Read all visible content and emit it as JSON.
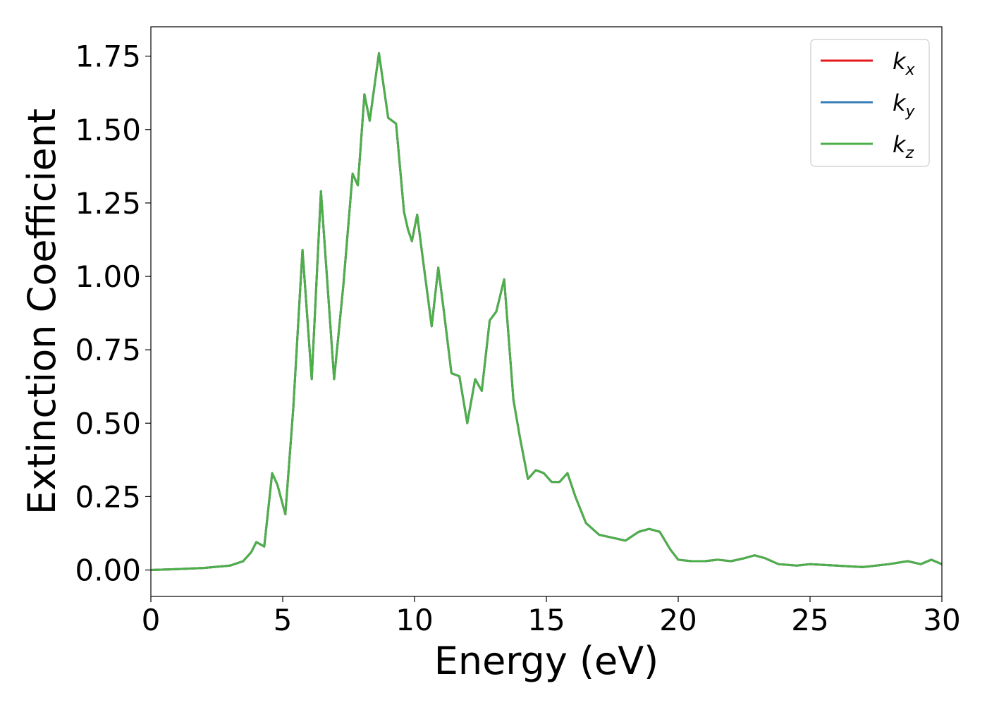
{
  "chart_data": {
    "type": "line",
    "title": "",
    "xlabel": "Energy (eV)",
    "ylabel": "Extinction Coefficient",
    "xlim": [
      0,
      30
    ],
    "ylim": [
      -0.09,
      1.85
    ],
    "xticks": [
      0,
      5,
      10,
      15,
      20,
      25,
      30
    ],
    "xtick_labels": [
      "0",
      "5",
      "10",
      "15",
      "20",
      "25",
      "30"
    ],
    "yticks": [
      0.0,
      0.25,
      0.5,
      0.75,
      1.0,
      1.25,
      1.5,
      1.75
    ],
    "ytick_labels": [
      "0.00",
      "0.25",
      "0.50",
      "0.75",
      "1.00",
      "1.25",
      "1.50",
      "1.75"
    ],
    "grid": false,
    "legend_position": "top-right",
    "legend": [
      {
        "base": "k",
        "sub": "x",
        "color": "#e41a1c"
      },
      {
        "base": "k",
        "sub": "y",
        "color": "#377eb8"
      },
      {
        "base": "k",
        "sub": "z",
        "color": "#4daf4a"
      }
    ],
    "x": [
      0,
      1,
      2,
      3,
      3.5,
      3.8,
      4.0,
      4.3,
      4.6,
      4.8,
      5.1,
      5.4,
      5.75,
      6.1,
      6.45,
      6.95,
      7.3,
      7.65,
      7.85,
      8.1,
      8.3,
      8.65,
      9.0,
      9.3,
      9.6,
      9.75,
      9.9,
      10.1,
      10.3,
      10.65,
      10.9,
      11.1,
      11.4,
      11.7,
      12.0,
      12.3,
      12.55,
      12.85,
      13.1,
      13.4,
      13.75,
      14.0,
      14.3,
      14.6,
      14.9,
      15.2,
      15.5,
      15.8,
      16.1,
      16.5,
      17.0,
      17.5,
      18.0,
      18.5,
      18.9,
      19.3,
      19.7,
      20.0,
      20.5,
      21.0,
      21.5,
      22.0,
      22.5,
      22.9,
      23.3,
      23.8,
      24.5,
      25.0,
      26.0,
      27.0,
      28.0,
      28.7,
      29.2,
      29.6,
      30.0
    ],
    "series": [
      {
        "name": "k_x",
        "color": "#e41a1c",
        "y": [
          0.0,
          0.003,
          0.007,
          0.015,
          0.03,
          0.06,
          0.095,
          0.08,
          0.33,
          0.29,
          0.19,
          0.55,
          1.09,
          0.65,
          1.29,
          0.65,
          0.97,
          1.35,
          1.31,
          1.62,
          1.53,
          1.76,
          1.54,
          1.52,
          1.22,
          1.16,
          1.12,
          1.21,
          1.07,
          0.83,
          1.03,
          0.89,
          0.67,
          0.66,
          0.5,
          0.65,
          0.61,
          0.85,
          0.88,
          0.99,
          0.58,
          0.45,
          0.31,
          0.34,
          0.33,
          0.3,
          0.3,
          0.33,
          0.25,
          0.16,
          0.12,
          0.11,
          0.1,
          0.13,
          0.14,
          0.13,
          0.07,
          0.035,
          0.03,
          0.03,
          0.035,
          0.03,
          0.04,
          0.05,
          0.04,
          0.02,
          0.015,
          0.02,
          0.015,
          0.01,
          0.02,
          0.03,
          0.02,
          0.035,
          0.02
        ]
      },
      {
        "name": "k_y",
        "color": "#377eb8",
        "y": [
          0.0,
          0.003,
          0.007,
          0.015,
          0.03,
          0.06,
          0.095,
          0.08,
          0.33,
          0.29,
          0.19,
          0.55,
          1.09,
          0.65,
          1.29,
          0.65,
          0.97,
          1.35,
          1.31,
          1.62,
          1.53,
          1.76,
          1.54,
          1.52,
          1.22,
          1.16,
          1.12,
          1.21,
          1.07,
          0.83,
          1.03,
          0.89,
          0.67,
          0.66,
          0.5,
          0.65,
          0.61,
          0.85,
          0.88,
          0.99,
          0.58,
          0.45,
          0.31,
          0.34,
          0.33,
          0.3,
          0.3,
          0.33,
          0.25,
          0.16,
          0.12,
          0.11,
          0.1,
          0.13,
          0.14,
          0.13,
          0.07,
          0.035,
          0.03,
          0.03,
          0.035,
          0.03,
          0.04,
          0.05,
          0.04,
          0.02,
          0.015,
          0.02,
          0.015,
          0.01,
          0.02,
          0.03,
          0.02,
          0.035,
          0.02
        ]
      },
      {
        "name": "k_z",
        "color": "#4daf4a",
        "y": [
          0.0,
          0.003,
          0.007,
          0.015,
          0.03,
          0.06,
          0.095,
          0.08,
          0.33,
          0.29,
          0.19,
          0.55,
          1.09,
          0.65,
          1.29,
          0.65,
          0.97,
          1.35,
          1.31,
          1.62,
          1.53,
          1.76,
          1.54,
          1.52,
          1.22,
          1.16,
          1.12,
          1.21,
          1.07,
          0.83,
          1.03,
          0.89,
          0.67,
          0.66,
          0.5,
          0.65,
          0.61,
          0.85,
          0.88,
          0.99,
          0.58,
          0.45,
          0.31,
          0.34,
          0.33,
          0.3,
          0.3,
          0.33,
          0.25,
          0.16,
          0.12,
          0.11,
          0.1,
          0.13,
          0.14,
          0.13,
          0.07,
          0.035,
          0.03,
          0.03,
          0.035,
          0.03,
          0.04,
          0.05,
          0.04,
          0.02,
          0.015,
          0.02,
          0.015,
          0.01,
          0.02,
          0.03,
          0.02,
          0.035,
          0.02
        ]
      }
    ]
  }
}
